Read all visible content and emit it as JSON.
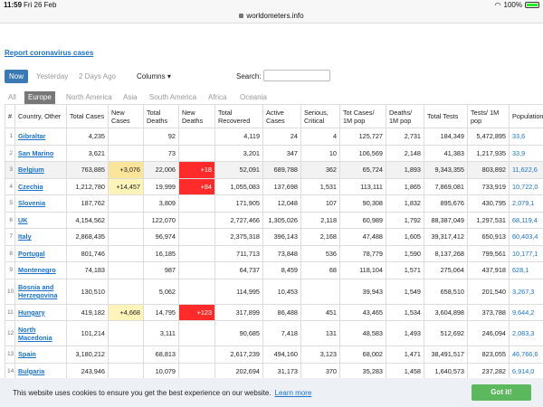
{
  "status": {
    "time": "11:59",
    "date": "Fri 26 Feb",
    "battery": "100%"
  },
  "browser": {
    "url": "worldometers.info"
  },
  "report_link": "Report coronavirus cases",
  "toolbar": {
    "now": "Now",
    "yesterday": "Yesterday",
    "two_days": "2 Days Ago",
    "columns": "Columns",
    "search_label": "Search:"
  },
  "regions": [
    "All",
    "Europe",
    "North America",
    "Asia",
    "South America",
    "Africa",
    "Oceania"
  ],
  "active_region": "Europe",
  "headers": [
    "#",
    "Country, Other",
    "Total Cases",
    "New Cases",
    "Total Deaths",
    "New Deaths",
    "Total Recovered",
    "Active Cases",
    "Serious, Critical",
    "Tot Cases/ 1M pop",
    "Deaths/ 1M pop",
    "Total Tests",
    "Tests/ 1M pop",
    "Population"
  ],
  "rows": [
    {
      "n": "1",
      "country": "Gibraltar",
      "total_cases": "4,235",
      "new_cases": "",
      "total_deaths": "92",
      "new_deaths": "",
      "recovered": "4,119",
      "active": "24",
      "serious": "4",
      "cases_1m": "125,727",
      "deaths_1m": "2,731",
      "tests": "184,349",
      "tests_1m": "5,472,895",
      "pop": "33,6"
    },
    {
      "n": "2",
      "country": "San Marino",
      "total_cases": "3,621",
      "new_cases": "",
      "total_deaths": "73",
      "new_deaths": "",
      "recovered": "3,201",
      "active": "347",
      "serious": "10",
      "cases_1m": "106,569",
      "deaths_1m": "2,148",
      "tests": "41,383",
      "tests_1m": "1,217,935",
      "pop": "33,9"
    },
    {
      "n": "3",
      "country": "Belgium",
      "total_cases": "763,885",
      "new_cases": "+3,076",
      "total_deaths": "22,006",
      "new_deaths": "+18",
      "recovered": "52,091",
      "active": "689,788",
      "serious": "362",
      "cases_1m": "65,724",
      "deaths_1m": "1,893",
      "tests": "9,343,355",
      "tests_1m": "803,892",
      "pop": "11,622,6"
    },
    {
      "n": "4",
      "country": "Czechia",
      "total_cases": "1,212,780",
      "new_cases": "+14,457",
      "total_deaths": "19,999",
      "new_deaths": "+84",
      "recovered": "1,055,083",
      "active": "137,698",
      "serious": "1,531",
      "cases_1m": "113,111",
      "deaths_1m": "1,865",
      "tests": "7,869,081",
      "tests_1m": "733,919",
      "pop": "10,722,0"
    },
    {
      "n": "5",
      "country": "Slovenia",
      "total_cases": "187,762",
      "new_cases": "",
      "total_deaths": "3,809",
      "new_deaths": "",
      "recovered": "171,905",
      "active": "12,048",
      "serious": "107",
      "cases_1m": "90,308",
      "deaths_1m": "1,832",
      "tests": "895,676",
      "tests_1m": "430,795",
      "pop": "2,079,1"
    },
    {
      "n": "6",
      "country": "UK",
      "total_cases": "4,154,562",
      "new_cases": "",
      "total_deaths": "122,070",
      "new_deaths": "",
      "recovered": "2,727,466",
      "active": "1,305,026",
      "serious": "2,118",
      "cases_1m": "60,989",
      "deaths_1m": "1,792",
      "tests": "88,387,049",
      "tests_1m": "1,297,531",
      "pop": "68,119,4"
    },
    {
      "n": "7",
      "country": "Italy",
      "total_cases": "2,868,435",
      "new_cases": "",
      "total_deaths": "96,974",
      "new_deaths": "",
      "recovered": "2,375,318",
      "active": "396,143",
      "serious": "2,168",
      "cases_1m": "47,488",
      "deaths_1m": "1,605",
      "tests": "39,317,412",
      "tests_1m": "650,913",
      "pop": "60,403,4"
    },
    {
      "n": "8",
      "country": "Portugal",
      "total_cases": "801,746",
      "new_cases": "",
      "total_deaths": "16,185",
      "new_deaths": "",
      "recovered": "711,713",
      "active": "73,848",
      "serious": "536",
      "cases_1m": "78,779",
      "deaths_1m": "1,590",
      "tests": "8,137,268",
      "tests_1m": "799,561",
      "pop": "10,177,1"
    },
    {
      "n": "9",
      "country": "Montenegro",
      "total_cases": "74,183",
      "new_cases": "",
      "total_deaths": "987",
      "new_deaths": "",
      "recovered": "64,737",
      "active": "8,459",
      "serious": "68",
      "cases_1m": "118,104",
      "deaths_1m": "1,571",
      "tests": "275,064",
      "tests_1m": "437,918",
      "pop": "628,1"
    },
    {
      "n": "10",
      "country": "Bosnia and Herzegovina",
      "total_cases": "130,510",
      "new_cases": "",
      "total_deaths": "5,062",
      "new_deaths": "",
      "recovered": "114,995",
      "active": "10,453",
      "serious": "",
      "cases_1m": "39,943",
      "deaths_1m": "1,549",
      "tests": "658,510",
      "tests_1m": "201,540",
      "pop": "3,267,3"
    },
    {
      "n": "11",
      "country": "Hungary",
      "total_cases": "419,182",
      "new_cases": "+4,668",
      "total_deaths": "14,795",
      "new_deaths": "+123",
      "recovered": "317,899",
      "active": "86,488",
      "serious": "451",
      "cases_1m": "43,465",
      "deaths_1m": "1,534",
      "tests": "3,604,898",
      "tests_1m": "373,788",
      "pop": "9,644,2"
    },
    {
      "n": "12",
      "country": "North Macedonia",
      "total_cases": "101,214",
      "new_cases": "",
      "total_deaths": "3,111",
      "new_deaths": "",
      "recovered": "90,685",
      "active": "7,418",
      "serious": "131",
      "cases_1m": "48,583",
      "deaths_1m": "1,493",
      "tests": "512,692",
      "tests_1m": "246,094",
      "pop": "2,083,3"
    },
    {
      "n": "13",
      "country": "Spain",
      "total_cases": "3,180,212",
      "new_cases": "",
      "total_deaths": "68,813",
      "new_deaths": "",
      "recovered": "2,617,239",
      "active": "494,160",
      "serious": "3,123",
      "cases_1m": "68,002",
      "deaths_1m": "1,471",
      "tests": "38,491,517",
      "tests_1m": "823,055",
      "pop": "46,766,6"
    },
    {
      "n": "14",
      "country": "Bulgaria",
      "total_cases": "243,946",
      "new_cases": "",
      "total_deaths": "10,079",
      "new_deaths": "",
      "recovered": "202,694",
      "active": "31,173",
      "serious": "370",
      "cases_1m": "35,283",
      "deaths_1m": "1,458",
      "tests": "1,640,573",
      "tests_1m": "237,282",
      "pop": "6,914,0"
    }
  ],
  "cookie": {
    "message": "This website uses cookies to ensure you get the best experience on our website.",
    "learn_more": "Learn more",
    "accept": "Got it!"
  }
}
